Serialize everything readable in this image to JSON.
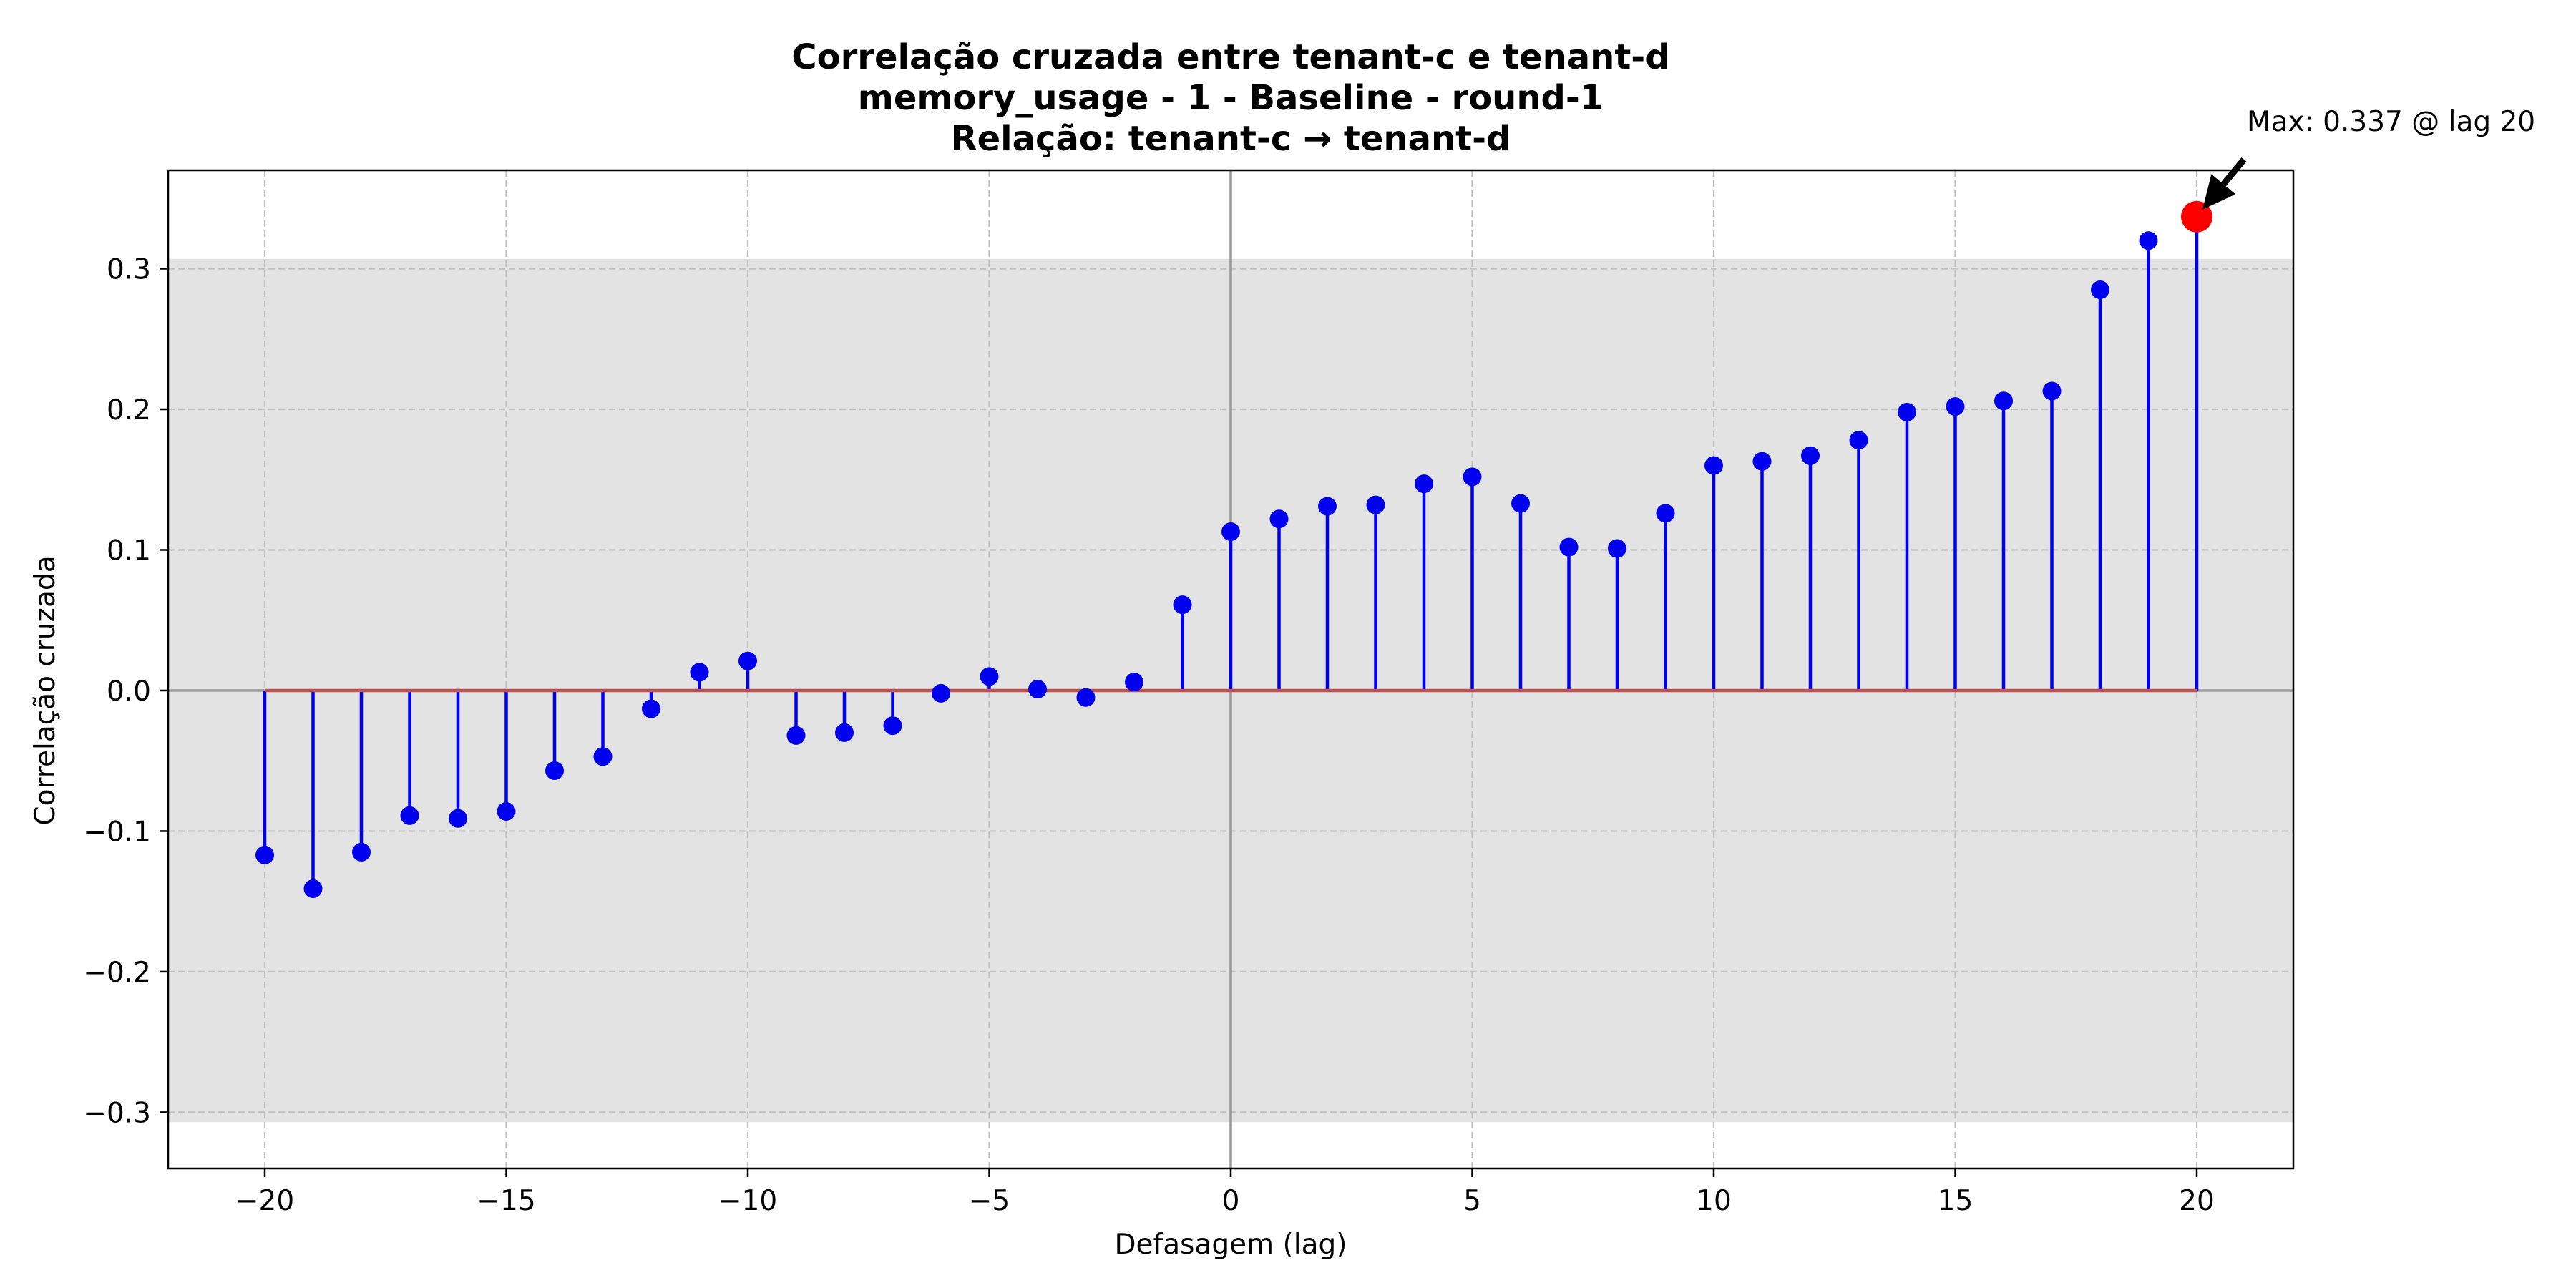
{
  "chart_data": {
    "type": "stem",
    "title_lines": [
      "Correlação cruzada entre tenant-c e tenant-d",
      "memory_usage - 1 - Baseline - round-1",
      "Relação: tenant-c → tenant-d"
    ],
    "xlabel": "Defasagem (lag)",
    "ylabel": "Correlação cruzada",
    "xlim": [
      -22,
      22
    ],
    "ylim": [
      -0.34,
      0.37
    ],
    "x_ticks": [
      -20,
      -15,
      -10,
      -5,
      0,
      5,
      10,
      15,
      20
    ],
    "x_tick_labels": [
      "−20",
      "−15",
      "−10",
      "−5",
      "0",
      "5",
      "10",
      "15",
      "20"
    ],
    "y_ticks": [
      -0.3,
      -0.2,
      -0.1,
      0.0,
      0.1,
      0.2,
      0.3
    ],
    "y_tick_labels": [
      "−0.3",
      "−0.2",
      "−0.1",
      "0.0",
      "0.1",
      "0.2",
      "0.3"
    ],
    "grid": true,
    "confidence_band": [
      -0.307,
      0.307
    ],
    "series": [
      {
        "x": [
          -20,
          -19,
          -18,
          -17,
          -16,
          -15,
          -14,
          -13,
          -12,
          -11,
          -10,
          -9,
          -8,
          -7,
          -6,
          -5,
          -4,
          -3,
          -2,
          -1,
          0,
          1,
          2,
          3,
          4,
          5,
          6,
          7,
          8,
          9,
          10,
          11,
          12,
          13,
          14,
          15,
          16,
          17,
          18,
          19,
          20
        ],
        "y": [
          -0.117,
          -0.141,
          -0.115,
          -0.089,
          -0.091,
          -0.086,
          -0.057,
          -0.047,
          -0.013,
          0.013,
          0.021,
          -0.032,
          -0.03,
          -0.025,
          -0.002,
          0.01,
          0.001,
          -0.005,
          0.006,
          0.061,
          0.113,
          0.122,
          0.131,
          0.132,
          0.147,
          0.152,
          0.133,
          0.102,
          0.101,
          0.126,
          0.16,
          0.163,
          0.167,
          0.178,
          0.198,
          0.202,
          0.206,
          0.213,
          0.285,
          0.32,
          0.337
        ]
      }
    ],
    "max_point": {
      "x": 20,
      "y": 0.337
    },
    "annotation": "Max: 0.337 @ lag 20",
    "colors": {
      "stem": "#0000ee",
      "marker": "#0000ee",
      "baseline": "#c0504d",
      "highlight": "#ff0000",
      "band": "#e3e3e3",
      "grid": "#c0c0c0",
      "zero_line": "#999999"
    }
  }
}
